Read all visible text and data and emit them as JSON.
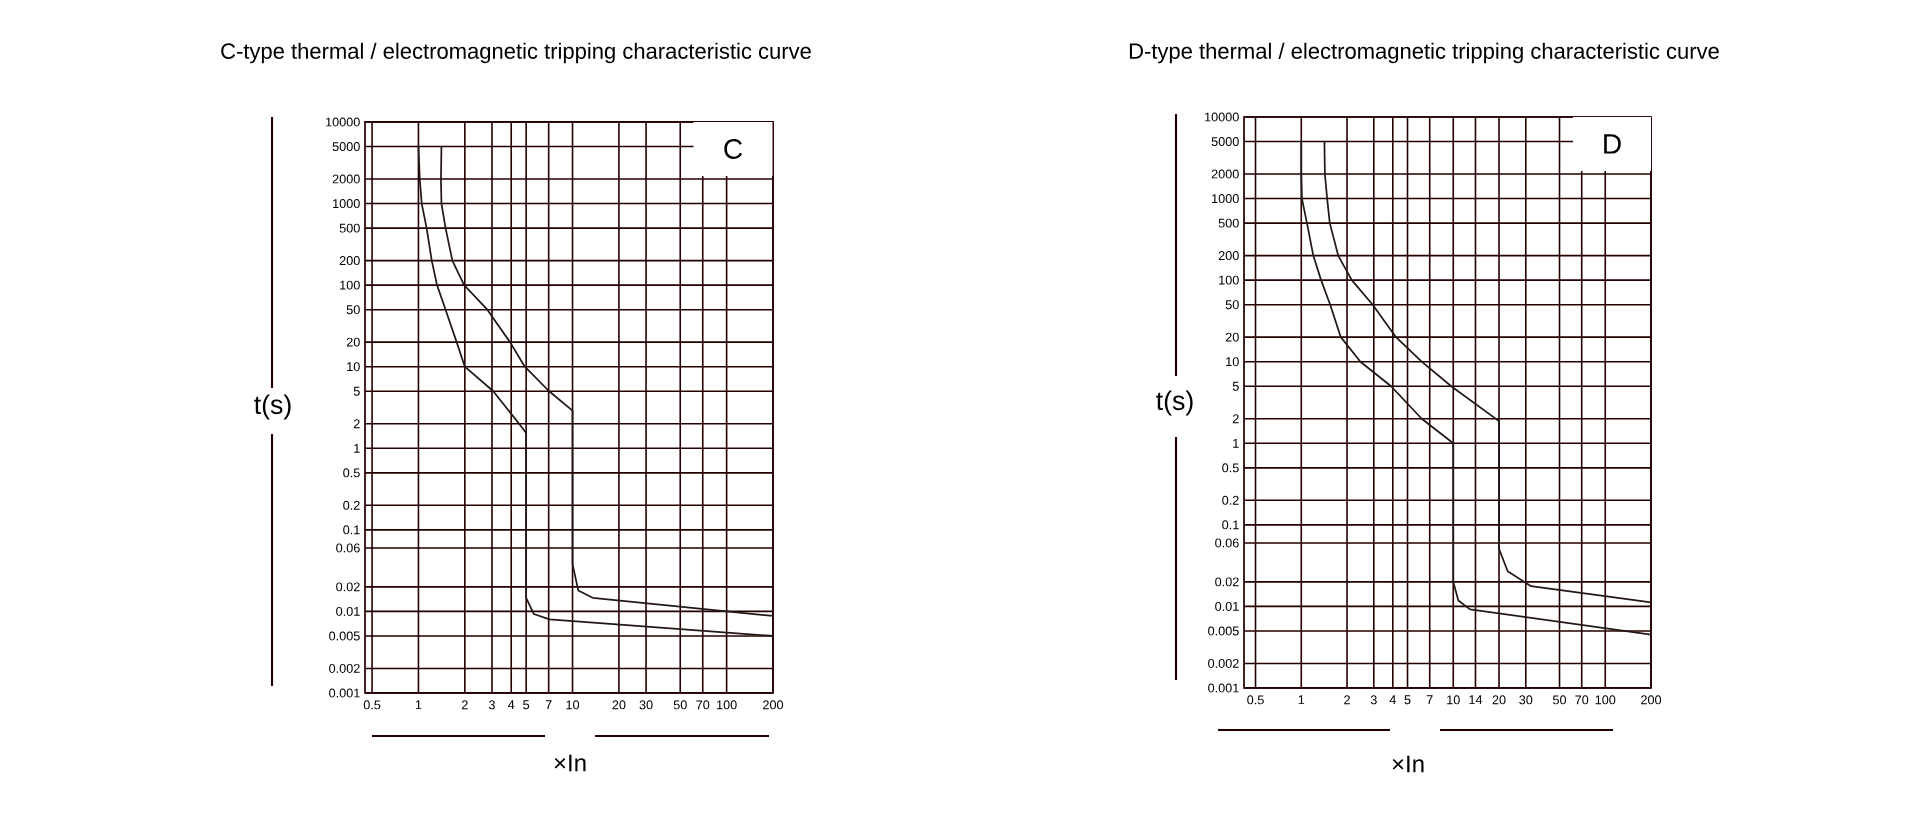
{
  "chart_data": [
    {
      "type": "line",
      "title": "C-type thermal / electromagnetic tripping characteristic curve",
      "xlabel": "×In",
      "ylabel": "t(s)",
      "annotations": [
        "C"
      ],
      "log": "xy",
      "grid": true,
      "xlim": [
        0.45,
        200
      ],
      "ylim": [
        0.001,
        10000
      ],
      "xticks": [
        0.5,
        1,
        2,
        3,
        4,
        5,
        7,
        10,
        20,
        30,
        50,
        70,
        100,
        200
      ],
      "yticks": [
        0.001,
        0.002,
        0.005,
        0.01,
        0.02,
        0.06,
        0.1,
        0.2,
        0.5,
        1,
        2,
        5,
        10,
        20,
        50,
        100,
        200,
        500,
        1000,
        2000,
        5000,
        10000
      ],
      "series": [
        {
          "color": "#231815",
          "x": [
            1,
            1.02,
            1.05,
            1.13,
            1.22,
            1.32,
            1.5,
            1.77,
            2,
            3.06,
            4.5,
            5,
            5,
            5.6,
            7.1,
            200
          ],
          "values": [
            5000,
            2000,
            1000,
            500,
            200,
            100,
            50,
            20,
            10,
            5,
            2,
            1.54,
            0.0147,
            0.0093,
            0.008,
            0.005
          ]
        },
        {
          "color": "#231815",
          "x": [
            1.41,
            1.4,
            1.41,
            1.5,
            1.66,
            1.98,
            2.8,
            3.93,
            4.9,
            7.05,
            10,
            10,
            10.9,
            13.5,
            200
          ],
          "values": [
            5000,
            2000,
            1000,
            500,
            200,
            100,
            50,
            20,
            10,
            5,
            2.9,
            0.038,
            0.018,
            0.0147,
            0.0088
          ]
        }
      ]
    },
    {
      "type": "line",
      "title": "D-type thermal / electromagnetic tripping characteristic curve",
      "xlabel": "×In",
      "ylabel": "t(s)",
      "annotations": [
        "D"
      ],
      "log": "xy",
      "grid": true,
      "xlim": [
        0.42,
        200
      ],
      "ylim": [
        0.001,
        10000
      ],
      "xticks": [
        0.5,
        1,
        2,
        3,
        4,
        5,
        7,
        10,
        14,
        20,
        30,
        50,
        70,
        100,
        200
      ],
      "yticks": [
        0.001,
        0.002,
        0.005,
        0.01,
        0.02,
        0.06,
        0.1,
        0.2,
        0.5,
        1,
        2,
        5,
        10,
        20,
        50,
        100,
        200,
        500,
        1000,
        2000,
        5000,
        10000
      ],
      "series": [
        {
          "color": "#231815",
          "x": [
            1,
            1,
            1.01,
            1.09,
            1.2,
            1.35,
            1.55,
            1.82,
            2.45,
            3.9,
            6.2,
            10,
            10,
            10.8,
            12.9,
            200
          ],
          "values": [
            5000,
            2000,
            1000,
            500,
            200,
            100,
            50,
            20,
            10,
            5,
            2,
            1,
            0.02,
            0.0118,
            0.0092,
            0.0045
          ]
        },
        {
          "color": "#231815",
          "x": [
            1.42,
            1.43,
            1.48,
            1.54,
            1.75,
            2.15,
            2.95,
            4.2,
            6.2,
            9.7,
            20,
            20,
            22.8,
            32.5,
            200
          ],
          "values": [
            5000,
            2000,
            1000,
            500,
            200,
            100,
            50,
            20,
            10,
            5,
            1.87,
            0.051,
            0.027,
            0.0177,
            0.0112
          ]
        }
      ]
    }
  ]
}
